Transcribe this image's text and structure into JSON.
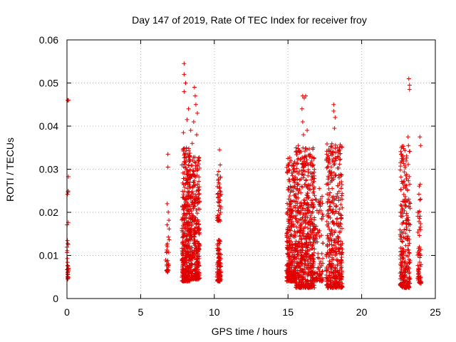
{
  "chart_data": {
    "type": "scatter",
    "title": "Day 147 of 2019, Rate Of TEC Index for receiver froy",
    "xlabel": "GPS time / hours",
    "ylabel": "ROTI / TECUs",
    "xlim": [
      0,
      25
    ],
    "ylim": [
      0,
      0.06
    ],
    "xticks": [
      "0",
      "5",
      "10",
      "15",
      "20",
      "25"
    ],
    "yticks": [
      "0",
      "0.01",
      "0.02",
      "0.03",
      "0.04",
      "0.05",
      "0.06"
    ],
    "grid": true,
    "marker": "plus",
    "color": "#e00000",
    "series": [
      {
        "clusters": [
          {
            "x": [
              0.0,
              0.1
            ],
            "ylo": 0.0045,
            "yhi": 0.029,
            "n": 28,
            "extra": [
              [
                0.05,
                0.046
              ],
              [
                0.1,
                0.046
              ],
              [
                0.05,
                0.0068
              ],
              [
                0.1,
                0.0068
              ],
              [
                0.05,
                0.006
              ],
              [
                0.05,
                0.0045
              ]
            ]
          },
          {
            "x": [
              6.7,
              6.95
            ],
            "ylo": 0.006,
            "yhi": 0.021,
            "n": 30,
            "extra": [
              [
                6.85,
                0.0335
              ],
              [
                6.85,
                0.0305
              ],
              [
                6.8,
                0.022
              ],
              [
                6.75,
                0.0065
              ]
            ]
          },
          {
            "x": [
              7.8,
              8.35
            ],
            "ylo": 0.004,
            "yhi": 0.035,
            "n": 380,
            "extra": [
              [
                7.95,
                0.0545
              ],
              [
                7.95,
                0.052
              ],
              [
                8.05,
                0.05
              ],
              [
                7.95,
                0.048
              ],
              [
                8.25,
                0.044
              ],
              [
                8.15,
                0.0415
              ],
              [
                7.9,
                0.0385
              ]
            ]
          },
          {
            "x": [
              8.35,
              9.0
            ],
            "ylo": 0.0045,
            "yhi": 0.033,
            "n": 340,
            "extra": [
              [
                8.65,
                0.049
              ],
              [
                8.7,
                0.047
              ],
              [
                8.75,
                0.045
              ],
              [
                8.85,
                0.043
              ],
              [
                8.6,
                0.041
              ],
              [
                8.4,
                0.039
              ],
              [
                8.8,
                0.038
              ],
              [
                8.5,
                0.036
              ]
            ]
          },
          {
            "x": [
              10.2,
              10.45
            ],
            "ylo": 0.004,
            "yhi": 0.014,
            "n": 110,
            "extra": [
              [
                10.35,
                0.0345
              ],
              [
                10.4,
                0.031
              ],
              [
                10.3,
                0.0295
              ]
            ]
          },
          {
            "x": [
              10.2,
              10.45
            ],
            "ylo": 0.018,
            "yhi": 0.029,
            "n": 45,
            "extra": []
          },
          {
            "x": [
              14.9,
              15.5
            ],
            "ylo": 0.004,
            "yhi": 0.033,
            "n": 300,
            "extra": [
              [
                15.3,
                0.0285
              ],
              [
                15.45,
                0.0275
              ]
            ]
          },
          {
            "x": [
              15.5,
              16.8
            ],
            "ylo": 0.0025,
            "yhi": 0.035,
            "n": 620,
            "extra": [
              [
                16.0,
                0.047
              ],
              [
                16.1,
                0.0465
              ],
              [
                16.2,
                0.047
              ],
              [
                15.95,
                0.044
              ],
              [
                16.0,
                0.041
              ],
              [
                16.3,
                0.039
              ],
              [
                16.05,
                0.038
              ],
              [
                15.7,
                0.0355
              ],
              [
                16.5,
                0.0335
              ]
            ]
          },
          {
            "x": [
              16.8,
              17.4
            ],
            "ylo": 0.004,
            "yhi": 0.026,
            "n": 90,
            "extra": [
              [
                17.1,
                0.0225
              ]
            ]
          },
          {
            "x": [
              17.6,
              18.7
            ],
            "ylo": 0.0025,
            "yhi": 0.036,
            "n": 430,
            "extra": [
              [
                18.1,
                0.045
              ],
              [
                18.1,
                0.0435
              ],
              [
                18.2,
                0.042
              ],
              [
                18.15,
                0.0395
              ]
            ]
          },
          {
            "x": [
              22.6,
              23.3
            ],
            "ylo": 0.0025,
            "yhi": 0.036,
            "n": 260,
            "extra": [
              [
                23.2,
                0.051
              ],
              [
                23.25,
                0.0495
              ],
              [
                23.25,
                0.0485
              ],
              [
                23.15,
                0.0375
              ]
            ]
          },
          {
            "x": [
              23.8,
              24.05
            ],
            "ylo": 0.0035,
            "yhi": 0.027,
            "n": 60,
            "extra": [
              [
                23.95,
                0.0375
              ],
              [
                24.0,
                0.0355
              ],
              [
                23.9,
                0.016
              ],
              [
                24.0,
                0.016
              ]
            ]
          }
        ]
      }
    ]
  }
}
